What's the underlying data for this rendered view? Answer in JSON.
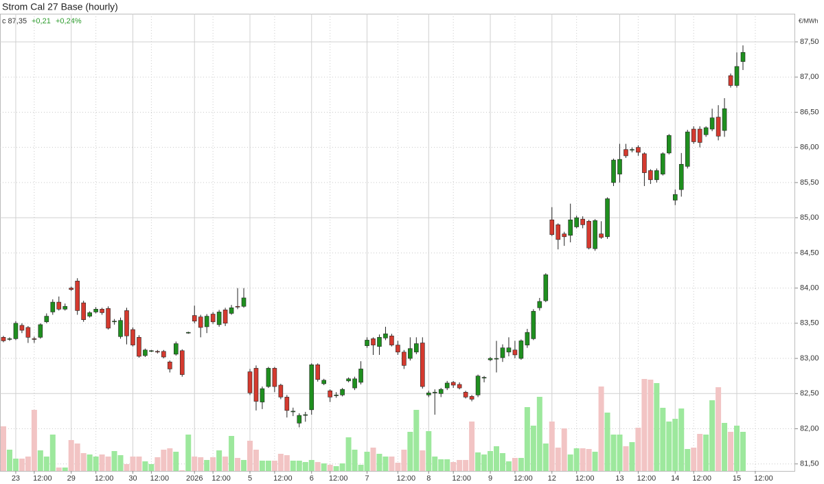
{
  "chart_data": {
    "type": "candlestick",
    "title": "Strom Cal 27 Base (hourly)",
    "last_label": "c 87,35",
    "change": "+0,21",
    "change_pct": "+0,24%",
    "unit": "€/MWh",
    "up_color": "#1f8f1f",
    "down_color": "#d43a2f",
    "volume_up_color": "#9de89d",
    "volume_down_color": "#f2c4c4",
    "grid": true,
    "ylim": [
      81.4,
      87.9
    ],
    "yticks": [
      {
        "value": 81.5,
        "label": "81,50"
      },
      {
        "value": 82,
        "label": "82,00"
      },
      {
        "value": 82.5,
        "label": "82,50"
      },
      {
        "value": 83,
        "label": "83,00"
      },
      {
        "value": 83.5,
        "label": "83,50"
      },
      {
        "value": 84,
        "label": "84,00"
      },
      {
        "value": 84.5,
        "label": "84,50"
      },
      {
        "value": 85,
        "label": "85,00"
      },
      {
        "value": 85.5,
        "label": "85,50"
      },
      {
        "value": 86,
        "label": "86,00"
      },
      {
        "value": 86.5,
        "label": "86,50"
      },
      {
        "value": 87,
        "label": "87,00"
      },
      {
        "value": 87.5,
        "label": "87,50"
      }
    ],
    "categories": [
      null,
      null,
      "23",
      null,
      null,
      "12:00",
      null,
      null,
      null,
      null,
      null,
      "29",
      null,
      null,
      null,
      "12:00",
      null,
      null,
      null,
      null,
      null,
      "30",
      null,
      null,
      "12:00",
      null,
      null,
      null,
      null,
      null,
      null,
      "2026",
      null,
      null,
      "12:00",
      null,
      null,
      null,
      null,
      null,
      "5",
      null,
      null,
      null,
      "12:00",
      null,
      null,
      null,
      null,
      null,
      "6",
      null,
      null,
      "12:00",
      null,
      null,
      null,
      null,
      null,
      "7",
      null,
      null,
      null,
      null,
      "12:00",
      null,
      null,
      null,
      null,
      "8",
      null,
      null,
      null,
      "12:00",
      null,
      null,
      null,
      null,
      null,
      "9",
      null,
      null,
      null,
      "12:00",
      null,
      null,
      null,
      null,
      null,
      "12",
      null,
      null,
      null,
      "12:00",
      null,
      null,
      null,
      null,
      null,
      null,
      "13",
      null,
      null,
      "12:00",
      null,
      null,
      null,
      null,
      null,
      "14",
      null,
      null,
      "12:00",
      null,
      null,
      null,
      null,
      null,
      null,
      "15",
      null,
      null,
      "12:00"
    ],
    "open": [
      83.3,
      83.27,
      83.28,
      83.47,
      83.44,
      83.28,
      83.3,
      83.52,
      83.66,
      83.8,
      83.7,
      84.0,
      84.1,
      83.79,
      83.6,
      83.66,
      83.7,
      83.71,
      83.52,
      83.31,
      83.68,
      83.41,
      83.3,
      83.04,
      83.1,
      83.1,
      83.1,
      82.95,
      83.06,
      83.11,
      83.36,
      83.61,
      83.59,
      83.45,
      83.63,
      83.48,
      83.69,
      83.64,
      83.74,
      83.74,
      82.81,
      82.86,
      82.38,
      82.6,
      82.86,
      82.62,
      82.45,
      82.24,
      82.08,
      82.19,
      82.27,
      82.91,
      82.64,
      82.54,
      82.47,
      82.48,
      82.68,
      82.58,
      82.66,
      83.18,
      83.28,
      83.17,
      83.29,
      83.32,
      83.19,
      83.09,
      83.0,
      83.09,
      83.22,
      82.48,
      82.51,
      82.5,
      82.58,
      82.66,
      82.63,
      82.52,
      82.46,
      82.48,
      82.72,
      82.98,
      82.99,
      83.01,
      83.09,
      83.12,
      83.0,
      83.19,
      83.28,
      83.72,
      83.82,
      84.97,
      84.9,
      84.77,
      84.75,
      84.87,
      84.98,
      84.95,
      84.56,
      84.77,
      84.73,
      85.5,
      85.62,
      85.97,
      85.96,
      86.0,
      85.91,
      85.67,
      85.54,
      85.62,
      85.92,
      85.25,
      85.4,
      85.73,
      86.26,
      86.26,
      86.18,
      86.26,
      86.43,
      86.24,
      87.02,
      86.88,
      87.22,
      null,
      null
    ],
    "high": [
      83.32,
      83.3,
      83.53,
      83.5,
      83.46,
      83.31,
      83.5,
      83.64,
      83.84,
      83.88,
      83.78,
      84.02,
      84.14,
      83.82,
      83.67,
      83.73,
      83.72,
      83.74,
      83.56,
      83.58,
      83.72,
      83.44,
      83.33,
      83.14,
      83.12,
      83.12,
      83.12,
      82.97,
      83.24,
      83.13,
      83.38,
      83.75,
      83.62,
      83.63,
      83.66,
      83.69,
      83.72,
      83.76,
      84.0,
      84.0,
      82.85,
      82.9,
      82.6,
      82.88,
      82.88,
      82.64,
      82.48,
      82.3,
      82.22,
      82.24,
      82.93,
      82.93,
      82.71,
      82.56,
      82.52,
      82.58,
      82.73,
      82.74,
      82.96,
      83.3,
      83.3,
      83.34,
      83.45,
      83.35,
      83.25,
      83.12,
      83.3,
      83.3,
      83.3,
      82.54,
      82.56,
      82.58,
      82.68,
      82.68,
      82.66,
      82.54,
      82.48,
      82.77,
      82.75,
      83.02,
      83.25,
      83.2,
      83.3,
      83.25,
      83.27,
      83.42,
      83.7,
      83.86,
      84.21,
      85.15,
      84.92,
      84.8,
      85.2,
      85.03,
      85.02,
      84.97,
      84.98,
      84.95,
      85.29,
      85.84,
      86.05,
      86.05,
      86.0,
      86.03,
      85.93,
      85.69,
      85.7,
      85.93,
      86.19,
      85.4,
      85.92,
      86.25,
      86.3,
      86.3,
      86.3,
      86.55,
      86.6,
      86.7,
      87.05,
      87.35,
      87.45,
      null,
      null
    ],
    "low": [
      83.23,
      83.25,
      83.26,
      83.36,
      83.22,
      83.22,
      83.28,
      83.5,
      83.62,
      83.68,
      83.68,
      83.96,
      83.62,
      83.52,
      83.58,
      83.64,
      83.62,
      83.41,
      83.48,
      83.28,
      83.2,
      83.17,
      83.01,
      83.02,
      83.09,
      83.07,
      83.0,
      82.8,
      83.04,
      82.74,
      83.35,
      83.5,
      83.3,
      83.36,
      83.49,
      83.45,
      83.46,
      83.62,
      83.7,
      83.72,
      82.48,
      82.26,
      82.28,
      82.58,
      82.52,
      82.42,
      82.16,
      82.18,
      82.02,
      82.1,
      82.2,
      82.67,
      82.62,
      82.38,
      82.44,
      82.46,
      82.66,
      82.55,
      82.63,
      83.15,
      83.05,
      83.05,
      83.26,
      83.17,
      83.05,
      82.85,
      82.97,
      83.06,
      82.57,
      82.45,
      82.2,
      82.45,
      82.55,
      82.58,
      82.56,
      82.43,
      82.39,
      82.45,
      82.66,
      82.96,
      82.8,
      82.95,
      83.03,
      83.0,
      82.98,
      83.15,
      83.26,
      83.68,
      83.8,
      84.74,
      84.55,
      84.6,
      84.65,
      84.85,
      84.85,
      84.55,
      84.53,
      84.7,
      84.7,
      85.45,
      85.5,
      85.85,
      85.93,
      85.88,
      85.45,
      85.48,
      85.5,
      85.6,
      85.9,
      85.18,
      85.3,
      85.7,
      86.05,
      86.0,
      86.15,
      86.23,
      86.1,
      86.15,
      86.85,
      86.85,
      87.1,
      null,
      null
    ],
    "close": [
      83.25,
      83.28,
      83.5,
      83.4,
      83.3,
      83.27,
      83.48,
      83.6,
      83.8,
      83.7,
      83.74,
      83.98,
      83.68,
      83.55,
      83.65,
      83.7,
      83.65,
      83.43,
      83.53,
      83.54,
      83.32,
      83.19,
      83.03,
      83.12,
      83.11,
      83.09,
      83.02,
      82.85,
      83.21,
      82.77,
      83.37,
      83.53,
      83.44,
      83.6,
      83.52,
      83.66,
      83.5,
      83.72,
      83.73,
      83.86,
      82.51,
      82.39,
      82.57,
      82.86,
      82.6,
      82.45,
      82.26,
      82.25,
      82.19,
      82.2,
      82.91,
      82.7,
      82.69,
      82.45,
      82.48,
      82.56,
      82.71,
      82.71,
      82.85,
      83.26,
      83.19,
      83.3,
      83.35,
      83.19,
      83.09,
      82.9,
      83.14,
      83.21,
      82.6,
      82.51,
      82.52,
      82.56,
      82.65,
      82.62,
      82.58,
      82.45,
      82.42,
      82.75,
      82.73,
      83.0,
      83.0,
      83.15,
      83.15,
      83.05,
      83.25,
      83.37,
      83.67,
      83.81,
      84.19,
      84.76,
      84.69,
      84.73,
      84.97,
      85.0,
      84.9,
      84.57,
      84.96,
      84.72,
      85.27,
      85.82,
      85.83,
      85.88,
      85.97,
      85.93,
      85.64,
      85.54,
      85.67,
      85.91,
      86.17,
      85.33,
      85.76,
      86.22,
      86.08,
      86.07,
      86.28,
      86.42,
      86.16,
      86.55,
      86.88,
      87.15,
      87.35,
      null,
      null
    ],
    "volume": [
      65,
      31,
      18,
      18,
      21,
      89,
      30,
      21,
      53,
      5,
      5,
      45,
      40,
      26,
      24,
      21,
      24,
      21,
      29,
      23,
      10,
      21,
      21,
      14,
      10,
      20,
      31,
      33,
      28,
      1,
      53,
      21,
      20,
      16,
      20,
      30,
      21,
      51,
      19,
      16,
      44,
      31,
      15,
      15,
      15,
      25,
      23,
      15,
      15,
      13,
      16,
      13,
      11,
      9,
      7,
      11,
      49,
      31,
      9,
      28,
      34,
      25,
      21,
      21,
      12,
      31,
      57,
      89,
      30,
      58,
      21,
      17,
      17,
      13,
      16,
      16,
      72,
      27,
      24,
      29,
      36,
      26,
      14,
      19,
      19,
      93,
      66,
      108,
      40,
      72,
      34,
      62,
      24,
      33,
      33,
      32,
      28,
      123,
      85,
      53,
      53,
      36,
      42,
      63,
      134,
      133,
      128,
      92,
      72,
      76,
      91,
      32,
      34,
      54,
      53,
      103,
      122,
      70,
      57,
      66,
      57,
      null,
      null
    ]
  }
}
